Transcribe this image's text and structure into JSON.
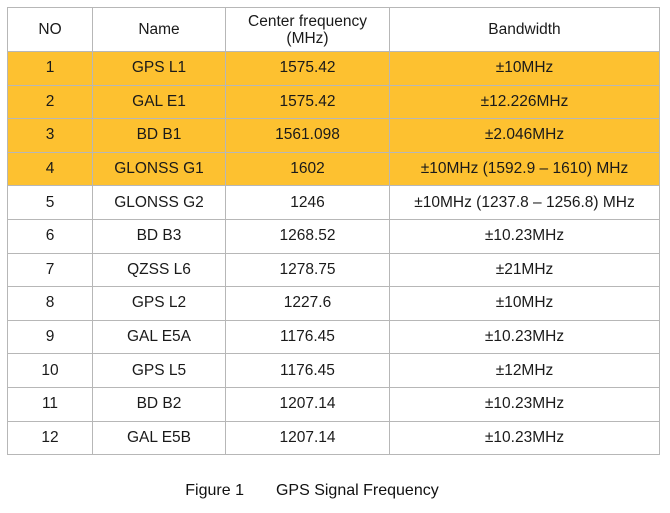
{
  "table": {
    "headers": {
      "no": "NO",
      "name": "Name",
      "freq_line1": "Center frequency",
      "freq_line2": "(MHz)",
      "bandwidth": "Bandwidth"
    },
    "highlight_color": "#fdc130",
    "rows": [
      {
        "no": "1",
        "name": "GPS L1",
        "freq": "1575.42",
        "bandwidth": "±10MHz",
        "highlighted": true
      },
      {
        "no": "2",
        "name": "GAL E1",
        "freq": "1575.42",
        "bandwidth": "±12.226MHz",
        "highlighted": true
      },
      {
        "no": "3",
        "name": "BD B1",
        "freq": "1561.098",
        "bandwidth": "±2.046MHz",
        "highlighted": true
      },
      {
        "no": "4",
        "name": "GLONSS G1",
        "freq": "1602",
        "bandwidth": "±10MHz (1592.9 – 1610) MHz",
        "highlighted": true
      },
      {
        "no": "5",
        "name": "GLONSS G2",
        "freq": "1246",
        "bandwidth": "±10MHz (1237.8 – 1256.8) MHz",
        "highlighted": false
      },
      {
        "no": "6",
        "name": "BD B3",
        "freq": "1268.52",
        "bandwidth": "±10.23MHz",
        "highlighted": false
      },
      {
        "no": "7",
        "name": "QZSS L6",
        "freq": "1278.75",
        "bandwidth": "±21MHz",
        "highlighted": false
      },
      {
        "no": "8",
        "name": "GPS L2",
        "freq": "1227.6",
        "bandwidth": "±10MHz",
        "highlighted": false
      },
      {
        "no": "9",
        "name": "GAL E5A",
        "freq": "1176.45",
        "bandwidth": "±10.23MHz",
        "highlighted": false
      },
      {
        "no": "10",
        "name": "GPS L5",
        "freq": "1176.45",
        "bandwidth": "±12MHz",
        "highlighted": false
      },
      {
        "no": "11",
        "name": "BD B2",
        "freq": "1207.14",
        "bandwidth": "±10.23MHz",
        "highlighted": false
      },
      {
        "no": "12",
        "name": "GAL E5B",
        "freq": "1207.14",
        "bandwidth": "±10.23MHz",
        "highlighted": false
      }
    ]
  },
  "caption": {
    "label": "Figure 1",
    "text": "GPS Signal Frequency"
  }
}
